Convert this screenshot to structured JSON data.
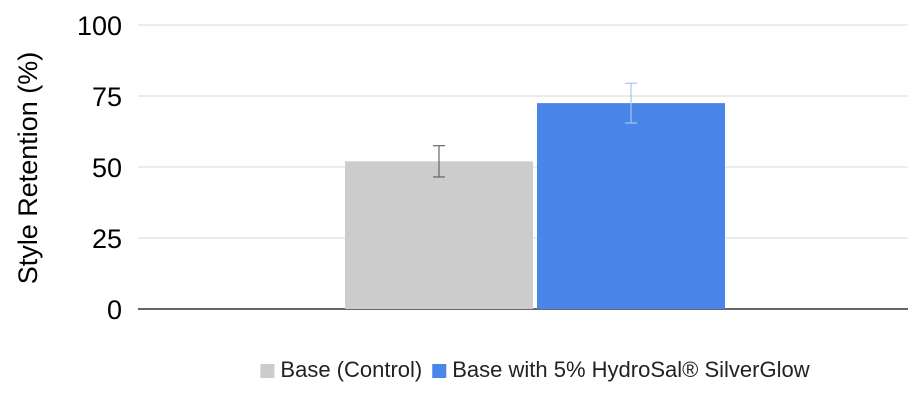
{
  "chart_data": {
    "type": "bar",
    "categories": [
      ""
    ],
    "series": [
      {
        "name": "Base (Control)",
        "values": [
          52
        ],
        "error": [
          5.5
        ],
        "color": "#cccccc",
        "error_color": "#666666"
      },
      {
        "name": "Base with 5% HydroSal® SilverGlow",
        "values": [
          72.5
        ],
        "error": [
          7
        ],
        "color": "#4a86e8",
        "error_color": "#a8c4f0"
      }
    ],
    "title": "",
    "xlabel": "",
    "ylabel": "Style Retention (%)",
    "ylim": [
      0,
      100
    ],
    "yticks": [
      "0",
      "25",
      "50",
      "75",
      "100"
    ],
    "grid": true,
    "legend_position": "bottom"
  }
}
